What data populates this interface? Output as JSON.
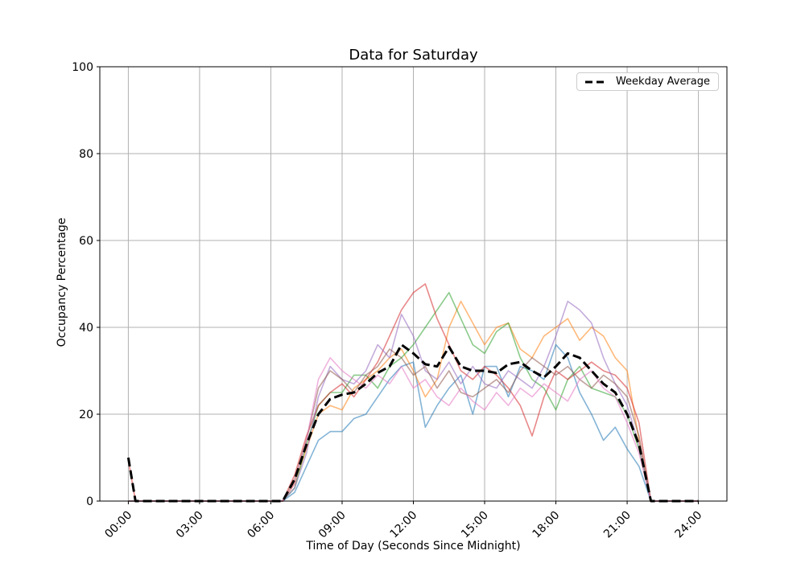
{
  "chart_data": {
    "type": "line",
    "title": "Data for Saturday",
    "xlabel": "Time of Day (Seconds Since Midnight)",
    "ylabel": "Occupancy Percentage",
    "ylim": [
      0,
      100
    ],
    "xlim_hours": [
      -1.2,
      25.2
    ],
    "grid": true,
    "grid_color": "#b0b0b0",
    "spine_color": "#000000",
    "background_color": "#ffffff",
    "yticks": [
      0,
      20,
      40,
      60,
      80,
      100
    ],
    "xticks": [
      {
        "hour": 0,
        "label": "00:00"
      },
      {
        "hour": 3,
        "label": "03:00"
      },
      {
        "hour": 6,
        "label": "06:00"
      },
      {
        "hour": 9,
        "label": "09:00"
      },
      {
        "hour": 12,
        "label": "12:00"
      },
      {
        "hour": 15,
        "label": "15:00"
      },
      {
        "hour": 18,
        "label": "18:00"
      },
      {
        "hour": 21,
        "label": "21:00"
      },
      {
        "hour": 24,
        "label": "24:00"
      }
    ],
    "legend": {
      "location": "upper right",
      "entries": [
        {
          "label": "Weekday Average",
          "style": "dashed",
          "color": "#000000"
        }
      ]
    },
    "sampling": {
      "start_hour": 6.5,
      "step_hours": 0.5,
      "end_hour": 22.5,
      "note": "values are occupancy % sampled every 30 min; traces are 0 outside 06:30-22:00 except the 00:00 spike"
    },
    "series": [
      {
        "name": "saturday-trace-blue",
        "color": "#1f77b4",
        "dashed": false,
        "line_width": 1.6,
        "opacity": 0.55,
        "midnight_spike": null,
        "values": [
          0,
          2,
          8,
          14,
          16,
          16,
          19,
          20,
          24,
          28,
          31,
          32,
          17,
          22,
          26,
          29,
          20,
          31,
          31,
          24,
          31,
          30,
          28,
          36,
          33,
          25,
          20,
          14,
          17,
          12,
          8,
          0,
          0
        ]
      },
      {
        "name": "saturday-trace-orange",
        "color": "#ff7f0e",
        "dashed": false,
        "line_width": 1.6,
        "opacity": 0.55,
        "midnight_spike": null,
        "values": [
          0,
          4,
          12,
          20,
          22,
          21,
          26,
          28,
          30,
          33,
          35,
          30,
          24,
          28,
          40,
          46,
          41,
          36,
          40,
          41,
          35,
          33,
          38,
          40,
          42,
          37,
          40,
          38,
          33,
          30,
          14,
          0,
          0
        ]
      },
      {
        "name": "saturday-trace-green",
        "color": "#2ca02c",
        "dashed": false,
        "line_width": 1.6,
        "opacity": 0.55,
        "midnight_spike": null,
        "values": [
          0,
          3,
          13,
          22,
          25,
          25,
          29,
          29,
          26,
          31,
          33,
          36,
          40,
          44,
          48,
          42,
          36,
          34,
          39,
          41,
          33,
          28,
          26,
          21,
          28,
          31,
          26,
          25,
          24,
          20,
          12,
          0,
          0
        ]
      },
      {
        "name": "saturday-trace-red",
        "color": "#d62728",
        "dashed": false,
        "line_width": 1.6,
        "opacity": 0.55,
        "midnight_spike": 9.5,
        "values": [
          0,
          6,
          15,
          22,
          25,
          27,
          24,
          28,
          32,
          38,
          44,
          48,
          50,
          42,
          36,
          30,
          28,
          31,
          29,
          26,
          22,
          15,
          24,
          30,
          28,
          30,
          32,
          30,
          29,
          26,
          18,
          0,
          0
        ]
      },
      {
        "name": "saturday-trace-purple",
        "color": "#9467bd",
        "dashed": false,
        "line_width": 1.6,
        "opacity": 0.55,
        "midnight_spike": null,
        "values": [
          0,
          3,
          11,
          24,
          31,
          28,
          27,
          30,
          36,
          33,
          43,
          38,
          30,
          28,
          32,
          27,
          31,
          27,
          26,
          30,
          28,
          26,
          31,
          38,
          46,
          44,
          41,
          33,
          27,
          22,
          13,
          0,
          0
        ]
      },
      {
        "name": "saturday-trace-brown",
        "color": "#8c564b",
        "dashed": false,
        "line_width": 1.6,
        "opacity": 0.55,
        "midnight_spike": null,
        "values": [
          0,
          5,
          14,
          26,
          30,
          28,
          25,
          29,
          31,
          35,
          33,
          29,
          31,
          26,
          30,
          25,
          24,
          26,
          28,
          25,
          30,
          33,
          31,
          29,
          31,
          28,
          26,
          29,
          27,
          24,
          15,
          0,
          0
        ]
      },
      {
        "name": "saturday-trace-pink",
        "color": "#e377c2",
        "dashed": false,
        "line_width": 1.6,
        "opacity": 0.55,
        "midnight_spike": null,
        "values": [
          0,
          4,
          14,
          28,
          33,
          30,
          28,
          26,
          29,
          27,
          31,
          26,
          28,
          24,
          22,
          26,
          23,
          21,
          25,
          22,
          26,
          24,
          27,
          25,
          23,
          28,
          30,
          26,
          24,
          18,
          11,
          0,
          0
        ]
      },
      {
        "name": "weekday-average",
        "label": "Weekday Average",
        "color": "#000000",
        "dashed": true,
        "line_width": 3,
        "opacity": 1,
        "midnight_spike": 10,
        "values": [
          0,
          5,
          13,
          20,
          23.5,
          24.5,
          25,
          27,
          29.5,
          31,
          36,
          34,
          31.5,
          31,
          35.5,
          31,
          30,
          30,
          29.5,
          31.5,
          32,
          30,
          28.5,
          31,
          34,
          33,
          30,
          27,
          25,
          20,
          13,
          0,
          0
        ]
      }
    ]
  }
}
